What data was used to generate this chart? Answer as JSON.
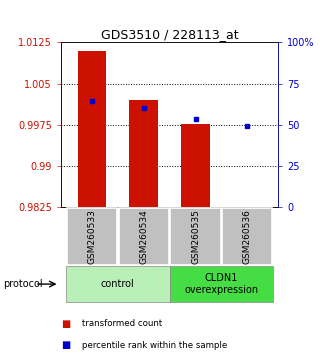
{
  "title": "GDS3510 / 228113_at",
  "samples": [
    "GSM260533",
    "GSM260534",
    "GSM260535",
    "GSM260536"
  ],
  "red_values": [
    1.011,
    1.002,
    0.9977,
    0.9825
  ],
  "blue_values": [
    1.0018,
    1.0005,
    0.9985,
    0.9973
  ],
  "ymin": 0.9825,
  "ymax": 1.0125,
  "yticks": [
    0.9825,
    0.99,
    0.9975,
    1.005,
    1.0125
  ],
  "ytick_labels": [
    "0.9825",
    "0.99",
    "0.9975",
    "1.005",
    "1.0125"
  ],
  "right_yticks": [
    0,
    25,
    50,
    75,
    100
  ],
  "right_ytick_labels": [
    "0",
    "25",
    "50",
    "75",
    "100%"
  ],
  "groups": [
    {
      "label": "control",
      "samples": [
        0,
        1
      ],
      "color": "#b8f0b8"
    },
    {
      "label": "CLDN1\noverexpression",
      "samples": [
        2,
        3
      ],
      "color": "#44dd44"
    }
  ],
  "bar_color": "#cc1100",
  "marker_color": "#0000cc",
  "background_color": "#ffffff",
  "sample_bg": "#c0c0c0",
  "protocol_label": "protocol",
  "legend_items": [
    {
      "color": "#cc1100",
      "label": "transformed count"
    },
    {
      "color": "#0000cc",
      "label": "percentile rank within the sample"
    }
  ]
}
